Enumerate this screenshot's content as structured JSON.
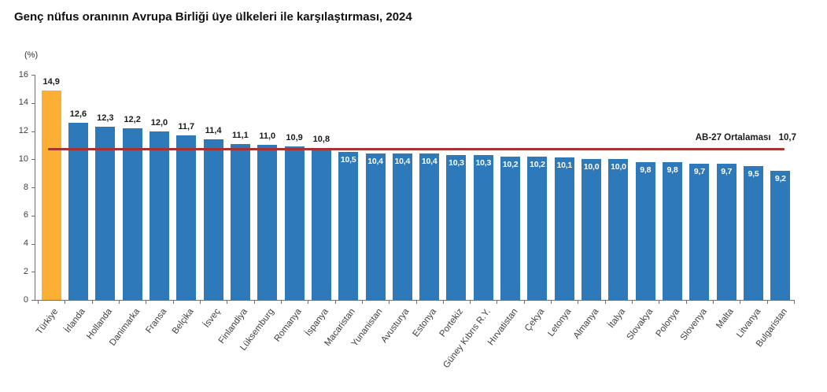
{
  "title": "Genç nüfus oranının Avrupa Birliği üye ülkeleri ile karşılaştırması, 2024",
  "chart_data": {
    "type": "bar",
    "title": "Genç nüfus oranının Avrupa Birliği üye ülkeleri ile karşılaştırması, 2024",
    "unit_label": "(%)",
    "xlabel": "",
    "ylabel": "(%)",
    "ylim": [
      0,
      16
    ],
    "yticks": [
      0,
      2,
      4,
      6,
      8,
      10,
      12,
      14,
      16
    ],
    "grid": false,
    "legend": false,
    "categories": [
      "Türkiye",
      "İrlanda",
      "Hollanda",
      "Danimarka",
      "Fransa",
      "Belçika",
      "İsveç",
      "Finlandiya",
      "Lüksemburg",
      "Romanya",
      "İspanya",
      "Macaristan",
      "Yunanistan",
      "Avusturya",
      "Estonya",
      "Portekiz",
      "Güney Kıbrıs R.Y.",
      "Hırvatistan",
      "Çekya",
      "Letonya",
      "Almanya",
      "İtalya",
      "Slovakya",
      "Polonya",
      "Slovenya",
      "Malta",
      "Litvanya",
      "Bulgaristan"
    ],
    "values": [
      14.9,
      12.6,
      12.3,
      12.2,
      12.0,
      11.7,
      11.4,
      11.1,
      11.0,
      10.9,
      10.8,
      10.5,
      10.4,
      10.4,
      10.4,
      10.3,
      10.3,
      10.2,
      10.2,
      10.1,
      10.0,
      10.0,
      9.8,
      9.8,
      9.7,
      9.7,
      9.5,
      9.2
    ],
    "value_labels": [
      "14,9",
      "12,6",
      "12,3",
      "12,2",
      "12,0",
      "11,7",
      "11,4",
      "11,1",
      "11,0",
      "10,9",
      "10,8",
      "10,5",
      "10,4",
      "10,4",
      "10,4",
      "10,3",
      "10,3",
      "10,2",
      "10,2",
      "10,1",
      "10,0",
      "10,0",
      "9,8",
      "9,8",
      "9,7",
      "9,7",
      "9,5",
      "9,2"
    ],
    "highlight_category": "Türkiye",
    "average_line": {
      "label": "AB-27 Ortalaması",
      "value": 10.7,
      "value_label": "10,7"
    },
    "colors": {
      "bar": "#2E79B9",
      "highlight": "#FBAF34",
      "avg_line": "#A83232",
      "value_label_outside": "#1a1a1a",
      "value_label_inside": "#ffffff"
    }
  }
}
